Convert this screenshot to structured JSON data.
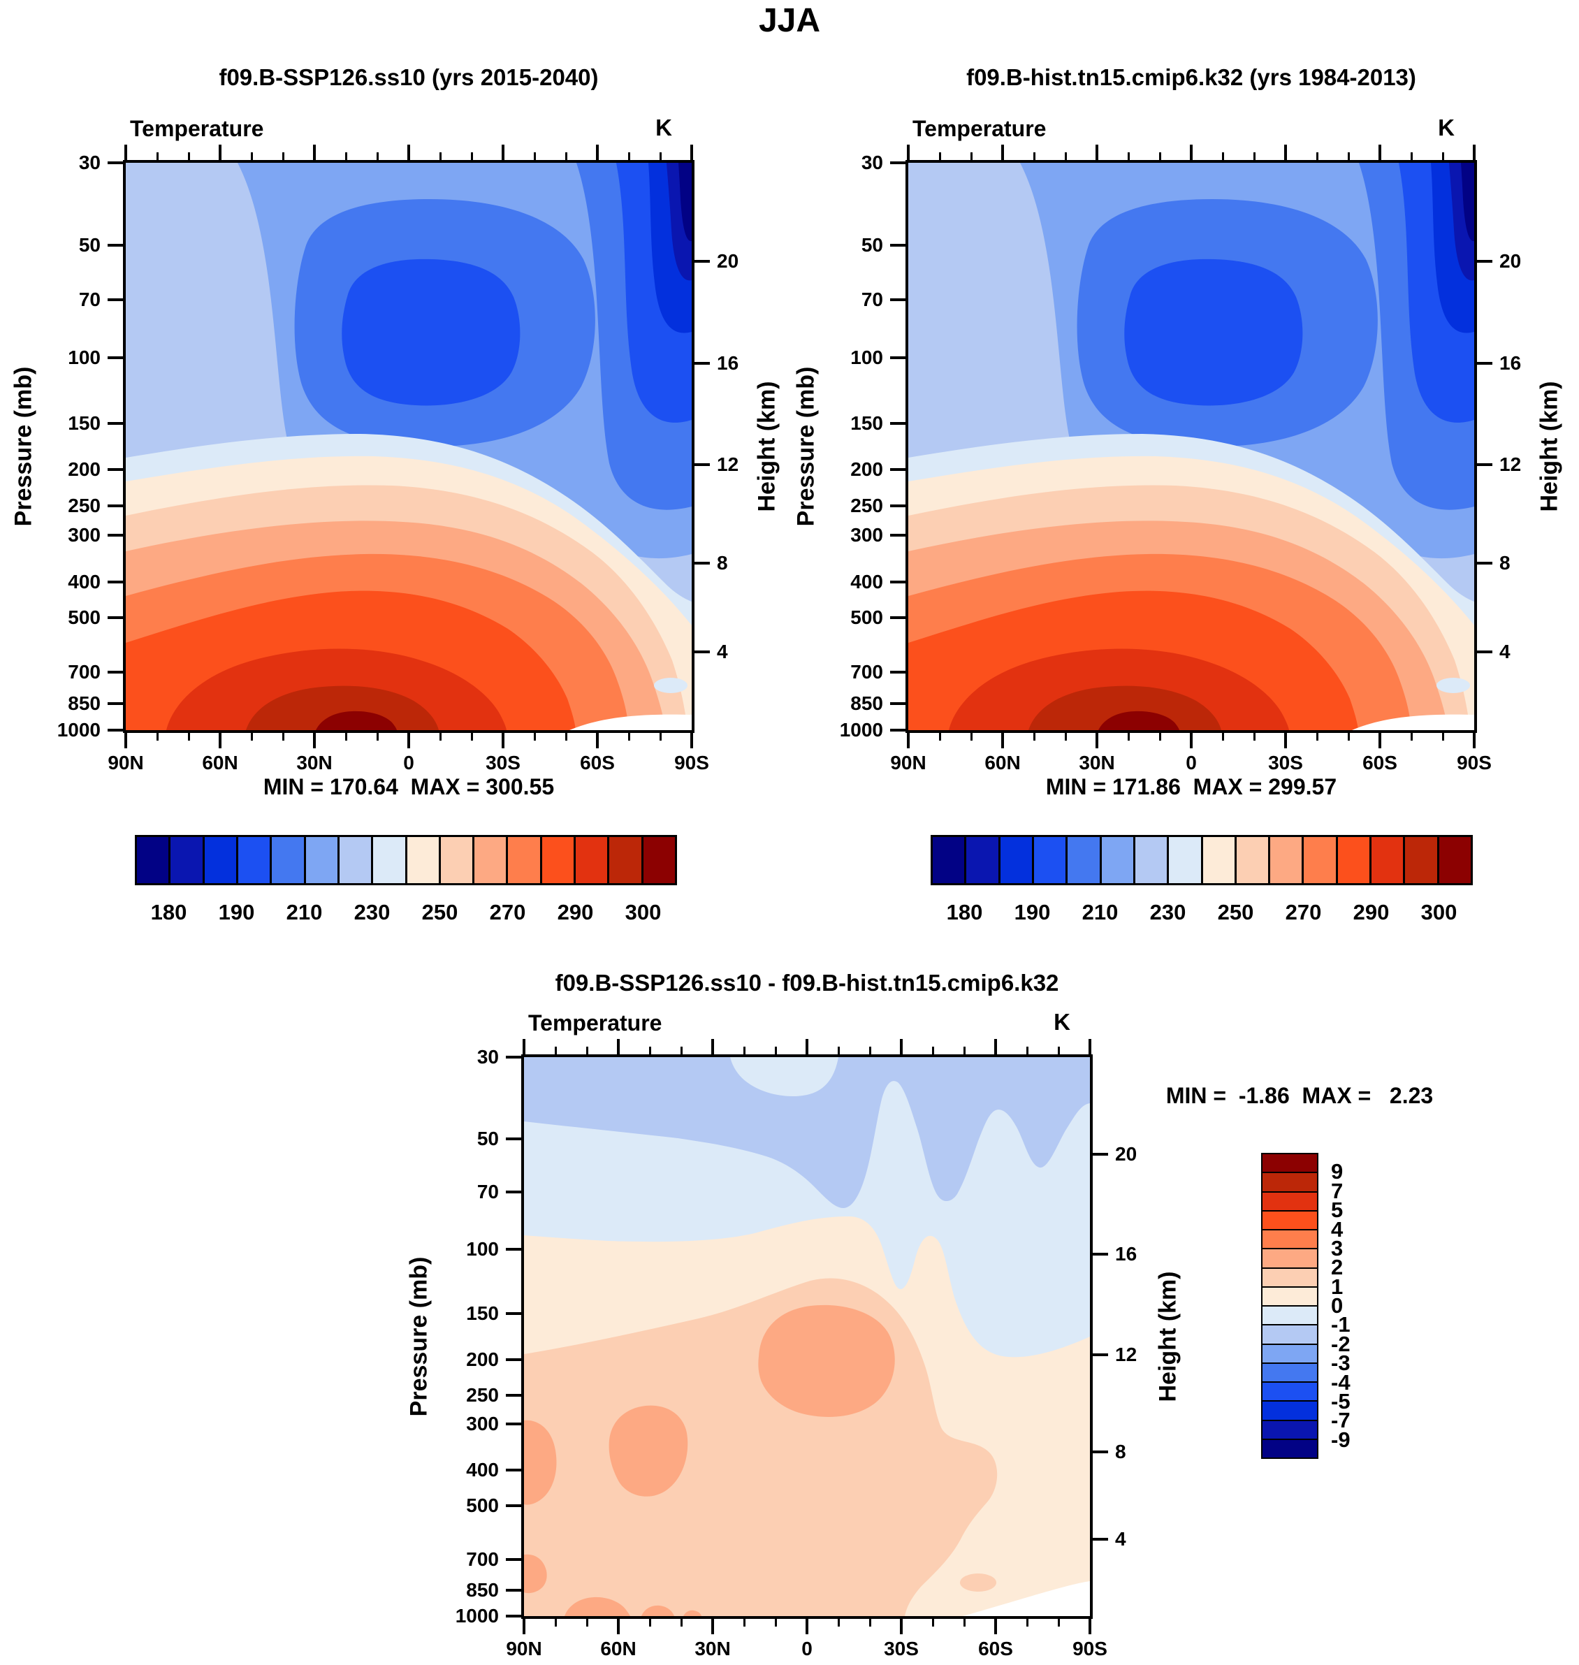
{
  "title": "JJA",
  "panels": [
    {
      "title": "f09.B-SSP126.ss10 (yrs 2015-2040)",
      "field": "Temperature",
      "units": "K",
      "stats": "MIN = 170.64  MAX = 300.55"
    },
    {
      "title": "f09.B-hist.tn15.cmip6.k32 (yrs 1984-2013)",
      "field": "Temperature",
      "units": "K",
      "stats": "MIN = 171.86  MAX = 299.57"
    },
    {
      "title": "f09.B-SSP126.ss10 - f09.B-hist.tn15.cmip6.k32",
      "field": "Temperature",
      "units": "K",
      "stats": "MIN =  -1.86  MAX =   2.23"
    }
  ],
  "axes": {
    "pressure_label": "Pressure (mb)",
    "height_label": "Height (km)",
    "pressure_ticks": [
      "30",
      "50",
      "70",
      "100",
      "150",
      "200",
      "250",
      "300",
      "400",
      "500",
      "700",
      "850",
      "1000"
    ],
    "height_ticks": [
      "20",
      "16",
      "12",
      "8",
      "4"
    ],
    "lat_ticks": [
      "90N",
      "60N",
      "30N",
      "0",
      "30S",
      "60S",
      "90S"
    ]
  },
  "temperature_colorbar": {
    "palette": [
      "#020285",
      "#0A16B0",
      "#0330DD",
      "#1C50F2",
      "#4478F0",
      "#7EA6F3",
      "#B4C9F3",
      "#DCEAF8",
      "#FDEBD8",
      "#FCCFB3",
      "#FDA983",
      "#FE7E4C",
      "#FC501C",
      "#E23210",
      "#BC2708",
      "#8C0101"
    ],
    "labels": [
      "180",
      "190",
      "210",
      "230",
      "250",
      "270",
      "290",
      "300"
    ]
  },
  "diff_colorbar": {
    "labels": [
      "9",
      "7",
      "5",
      "4",
      "3",
      "2",
      "1",
      "0",
      "-1",
      "-2",
      "-3",
      "-4",
      "-5",
      "-7",
      "-9"
    ]
  },
  "chart_data": [
    {
      "type": "heatmap",
      "subtype": "filled_contour_zonal_mean",
      "season": "JJA",
      "title": "f09.B-SSP126.ss10 (yrs 2015-2040)",
      "variable": "Temperature",
      "units": "K",
      "x": {
        "ticks": [
          "90N",
          "60N",
          "30N",
          "0",
          "30S",
          "60S",
          "90S"
        ],
        "minor_tick_interval_deg": 10
      },
      "y": {
        "label": "Pressure (mb)",
        "scale": "log",
        "ticks": [
          30,
          50,
          70,
          100,
          150,
          200,
          250,
          300,
          400,
          500,
          700,
          850,
          1000
        ]
      },
      "y2": {
        "label": "Height (km)",
        "ticks": [
          20,
          16,
          12,
          8,
          4
        ]
      },
      "stats": {
        "min": 170.64,
        "max": 300.55
      },
      "contour_levels": [
        180,
        185,
        190,
        200,
        210,
        220,
        230,
        240,
        250,
        260,
        270,
        280,
        290,
        295,
        300
      ],
      "colorbar_tick_labels": [
        180,
        190,
        210,
        230,
        250,
        270,
        290,
        300
      ],
      "notes": "Coldest air (<180 K) in the south-polar winter stratosphere (90S, 30-70 mb); cold tropical tropopause (~190-200 K) near 100 mb between 30N and 30S; warmest air (>300 K) at the tropical surface near 850-1000 mb; pale/white Antarctic surface at bottom right."
    },
    {
      "type": "heatmap",
      "subtype": "filled_contour_zonal_mean",
      "season": "JJA",
      "title": "f09.B-hist.tn15.cmip6.k32 (yrs 1984-2013)",
      "variable": "Temperature",
      "units": "K",
      "x": {
        "ticks": [
          "90N",
          "60N",
          "30N",
          "0",
          "30S",
          "60S",
          "90S"
        ],
        "minor_tick_interval_deg": 10
      },
      "y": {
        "label": "Pressure (mb)",
        "scale": "log",
        "ticks": [
          30,
          50,
          70,
          100,
          150,
          200,
          250,
          300,
          400,
          500,
          700,
          850,
          1000
        ]
      },
      "y2": {
        "label": "Height (km)",
        "ticks": [
          20,
          16,
          12,
          8,
          4
        ]
      },
      "stats": {
        "min": 171.86,
        "max": 299.57
      },
      "contour_levels": [
        180,
        185,
        190,
        200,
        210,
        220,
        230,
        240,
        250,
        260,
        270,
        280,
        290,
        295,
        300
      ],
      "colorbar_tick_labels": [
        180,
        190,
        210,
        230,
        250,
        270,
        290,
        300
      ],
      "notes": "Nearly identical pattern to the SSP126 panel: polar-night stratospheric minimum over 90S, tropical tropopause cold point near 100 mb, surface maximum in the tropics."
    },
    {
      "type": "heatmap",
      "subtype": "filled_contour_zonal_mean_difference",
      "season": "JJA",
      "title": "f09.B-SSP126.ss10 - f09.B-hist.tn15.cmip6.k32",
      "variable": "Temperature",
      "units": "K",
      "x": {
        "ticks": [
          "90N",
          "60N",
          "30N",
          "0",
          "30S",
          "60S",
          "90S"
        ],
        "minor_tick_interval_deg": 10
      },
      "y": {
        "label": "Pressure (mb)",
        "scale": "log",
        "ticks": [
          30,
          50,
          70,
          100,
          150,
          200,
          250,
          300,
          400,
          500,
          700,
          850,
          1000
        ]
      },
      "y2": {
        "label": "Height (km)",
        "ticks": [
          20,
          16,
          12,
          8,
          4
        ]
      },
      "stats": {
        "min": -1.86,
        "max": 2.23
      },
      "contour_levels": [
        -9,
        -7,
        -5,
        -4,
        -3,
        -2,
        -1,
        0,
        1,
        2,
        3,
        4,
        5,
        7,
        9
      ],
      "notes": "Stratospheric cooling of -1 to -2 K above ~70 mb; 0 to -1 K in the SH mid/high-latitude lower stratosphere down to ~200 mb; tropospheric warming of 0 to +2 K nearly everywhere below 100 mb with +2 to +3 K maxima in the tropical upper troposphere (200-300 mb), northern mid-latitudes (300-500 mb) and near the north-polar surface."
    }
  ]
}
